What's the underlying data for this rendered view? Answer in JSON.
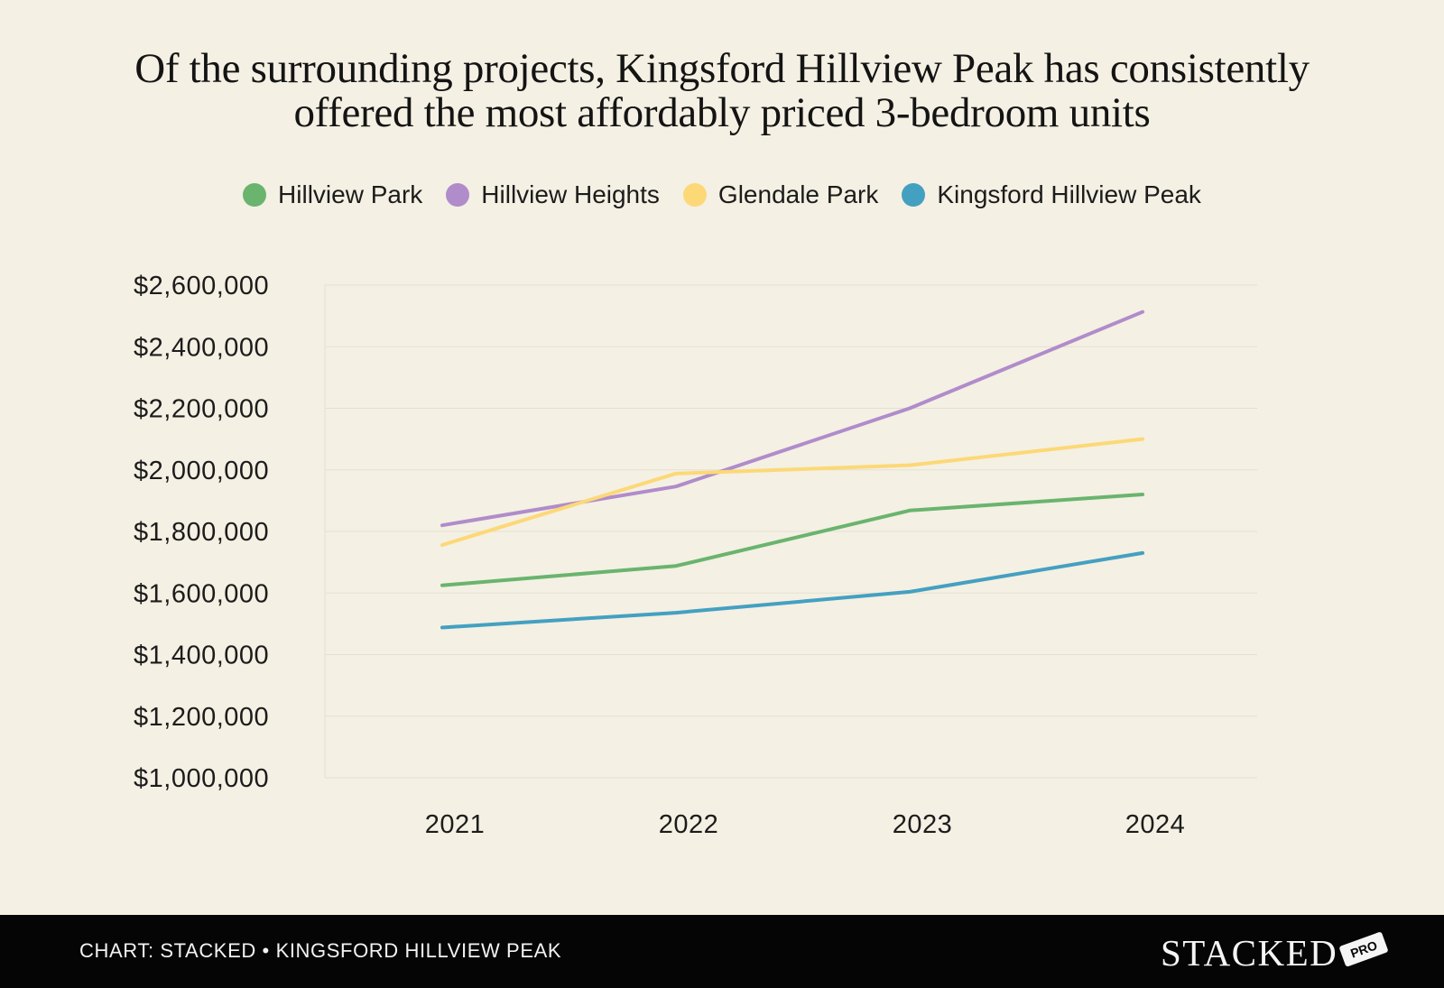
{
  "title_lines": [
    "Of the surrounding projects, Kingsford Hillview Peak has consistently",
    "offered the most affordably priced 3-bedroom units"
  ],
  "footer": {
    "source": "CHART: STACKED • KINGSFORD HILLVIEW PEAK",
    "logo_text": "STACKED",
    "logo_badge": "PRO"
  },
  "chart_data": {
    "type": "line",
    "title": "Of the surrounding projects, Kingsford Hillview Peak has consistently offered the most affordably priced 3-bedroom units",
    "xlabel": "",
    "ylabel": "",
    "x": [
      "2021",
      "2022",
      "2023",
      "2024"
    ],
    "ylim": [
      1000000,
      2600000
    ],
    "yticks": [
      1000000,
      1200000,
      1400000,
      1600000,
      1800000,
      2000000,
      2200000,
      2400000,
      2600000
    ],
    "ytick_labels": [
      "$1,000,000",
      "$1,200,000",
      "$1,400,000",
      "$1,600,000",
      "$1,800,000",
      "$2,000,000",
      "$2,200,000",
      "$2,400,000",
      "$2,600,000"
    ],
    "grid": true,
    "legend_position": "top-center",
    "series": [
      {
        "name": "Hillview Park",
        "color": "#6ab46e",
        "values": [
          1625000,
          1688000,
          1868000,
          1920000
        ]
      },
      {
        "name": "Hillview Heights",
        "color": "#b08ccb",
        "values": [
          1820000,
          1946000,
          2200000,
          2513000
        ]
      },
      {
        "name": "Glendale Park",
        "color": "#fcd877",
        "values": [
          1756000,
          1988000,
          2015000,
          2100000
        ]
      },
      {
        "name": "Kingsford Hillview Peak",
        "color": "#44a0c1",
        "values": [
          1488000,
          1536000,
          1604000,
          1730000
        ]
      }
    ]
  }
}
